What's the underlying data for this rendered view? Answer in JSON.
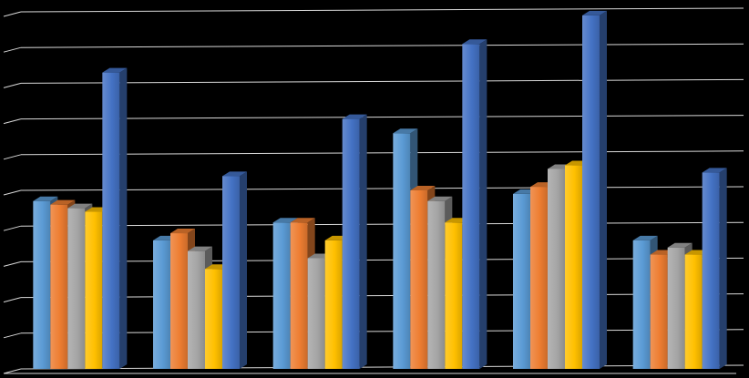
{
  "chart_data": {
    "type": "bar",
    "style": "3d-clustered-column",
    "categories": [
      "",
      "",
      "",
      "",
      "",
      ""
    ],
    "series": [
      {
        "color": "#5B9BD5",
        "values": [
          4.7,
          3.6,
          4.1,
          6.6,
          4.9,
          3.6
        ]
      },
      {
        "color": "#ED7D31",
        "values": [
          4.6,
          3.8,
          4.1,
          5.0,
          5.1,
          3.2
        ]
      },
      {
        "color": "#A5A5A5",
        "values": [
          4.5,
          3.3,
          3.1,
          4.7,
          5.6,
          3.4
        ]
      },
      {
        "color": "#FFC000",
        "values": [
          4.4,
          2.8,
          3.6,
          4.1,
          5.7,
          3.2
        ]
      },
      {
        "color": "#4472C4",
        "values": [
          8.3,
          5.4,
          7.0,
          9.1,
          9.9,
          5.5
        ]
      }
    ],
    "ylim": [
      0,
      10
    ],
    "grid": true,
    "legend": "none",
    "background": "#000000"
  }
}
